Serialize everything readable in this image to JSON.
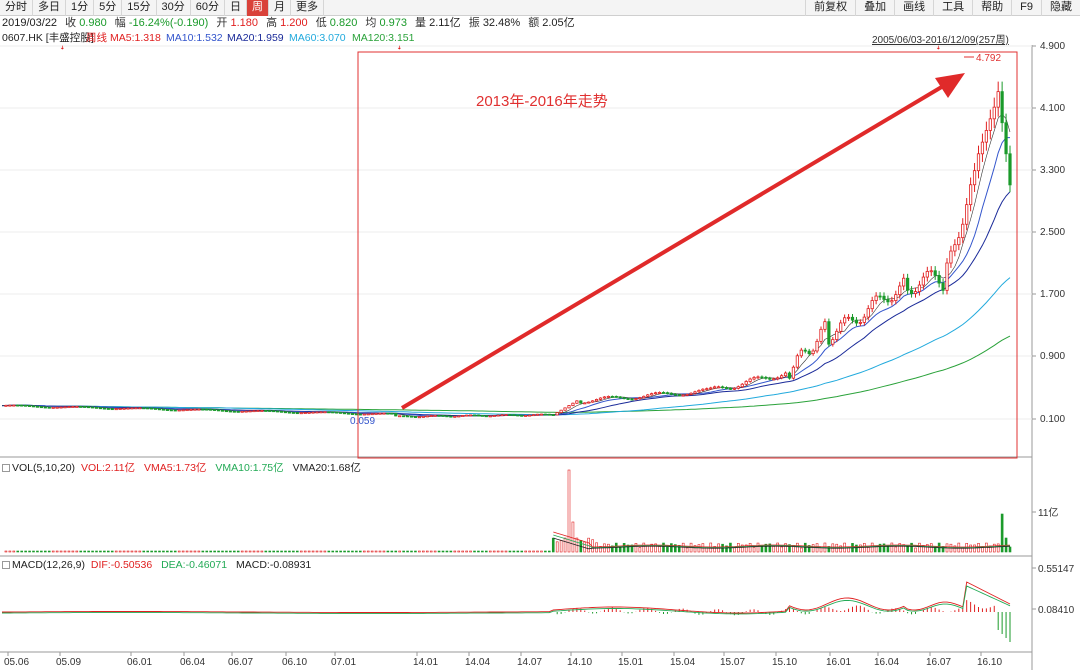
{
  "toolbar": {
    "left": [
      "分时",
      "多日",
      "1分",
      "5分",
      "15分",
      "30分",
      "60分",
      "日",
      "周",
      "月",
      "更多"
    ],
    "active": "周",
    "right": [
      "前复权",
      "叠加",
      "画线",
      "工具",
      "帮助",
      "F9",
      "隐藏"
    ]
  },
  "info": {
    "date": "2019/03/22",
    "close_label": "收",
    "close": "0.980",
    "change_label": "幅",
    "change": "-16.24%(-0.190)",
    "open_label": "开",
    "open": "1.180",
    "high_label": "高",
    "high": "1.200",
    "low_label": "低",
    "low": "0.820",
    "avg_label": "均",
    "avg": "0.973",
    "vol_label": "量",
    "vol": "2.11亿",
    "amp_label": "振",
    "amp": "32.48%",
    "amount_label": "额",
    "amount": "2.05亿"
  },
  "ma": {
    "stock": "0607.HK [丰盛控股]",
    "period": "周线",
    "ma5": "MA5:1.318",
    "ma10": "MA10:1.532",
    "ma20": "MA20:1.959",
    "ma60": "MA60:3.070",
    "ma120": "MA120:3.151",
    "range": "2005/06/03-2016/12/09(257周)"
  },
  "price_axis": [
    "4.900",
    "4.100",
    "3.300",
    "2.500",
    "1.700",
    "0.900",
    "0.100"
  ],
  "annotation": {
    "text": "2013年-2016年走势",
    "high_mark": "4.792",
    "low_mark": "0.059"
  },
  "vol": {
    "label": "VOL(5,10,20)",
    "vol": "VOL:2.11亿",
    "vma5": "VMA5:1.73亿",
    "vma10": "VMA10:1.75亿",
    "vma20": "VMA20:1.68亿",
    "axis": "11亿"
  },
  "macd": {
    "label": "MACD(12,26,9)",
    "dif": "DIF:-0.50536",
    "dea": "DEA:-0.46071",
    "macd": "MACD:-0.08931",
    "axis": [
      "0.55147",
      "0.08410"
    ]
  },
  "dates": [
    "05.06",
    "05.09",
    "06.01",
    "06.04",
    "06.07",
    "06.10",
    "07.01",
    "14.01",
    "14.04",
    "14.07",
    "14.10",
    "15.01",
    "15.04",
    "15.07",
    "15.10",
    "16.01",
    "16.04",
    "16.07",
    "16.10"
  ],
  "colors": {
    "up": "#e02020",
    "down": "#1a9a2a",
    "ma5": "#333333",
    "ma10": "#3355cc",
    "ma20": "#1a2a99",
    "ma60": "#22aadd",
    "ma120": "#2aa23a"
  }
}
